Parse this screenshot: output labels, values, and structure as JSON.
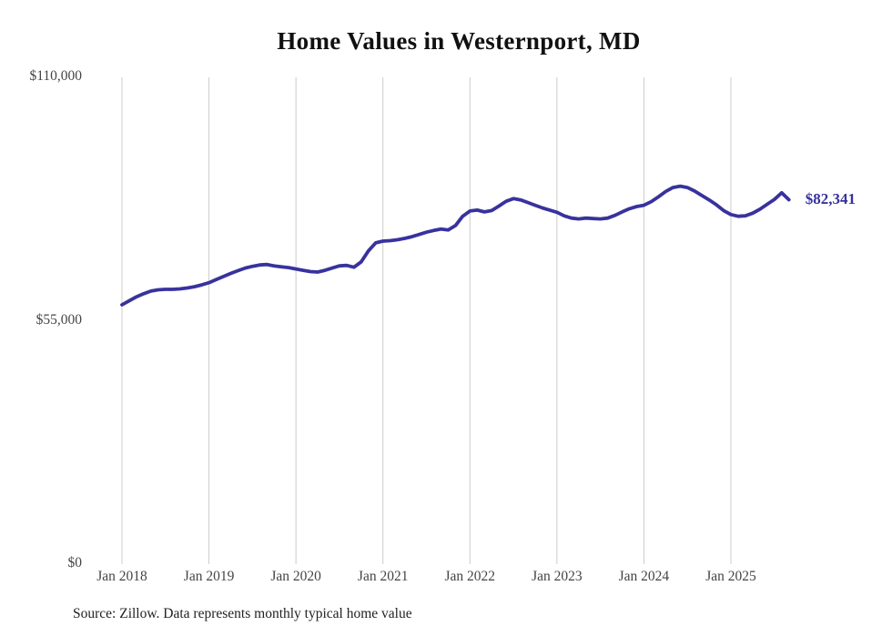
{
  "title": "Home Values in Westernport, MD",
  "source_note": "Source: Zillow. Data represents monthly typical home value",
  "end_label": "$82,341",
  "colors": {
    "line": "#38329e",
    "grid": "#cccccc",
    "axis_text": "#444444",
    "title_text": "#111111",
    "background": "#ffffff"
  },
  "chart_data": {
    "type": "line",
    "title": "Home Values in Westernport, MD",
    "x_start_month": "2018-01",
    "x_interval": "monthly",
    "ylim": [
      0,
      110000
    ],
    "grid": "vertical-only",
    "legend": "none",
    "yticks": [
      {
        "label": "$0",
        "value": 0
      },
      {
        "label": "$55,000",
        "value": 55000
      },
      {
        "label": "$110,000",
        "value": 110000
      }
    ],
    "xticks": [
      {
        "label": "Jan 2018",
        "month_index": 0
      },
      {
        "label": "Jan 2019",
        "month_index": 12
      },
      {
        "label": "Jan 2020",
        "month_index": 24
      },
      {
        "label": "Jan 2021",
        "month_index": 36
      },
      {
        "label": "Jan 2022",
        "month_index": 48
      },
      {
        "label": "Jan 2023",
        "month_index": 60
      },
      {
        "label": "Jan 2024",
        "month_index": 72
      },
      {
        "label": "Jan 2025",
        "month_index": 84
      }
    ],
    "series": [
      {
        "name": "Monthly typical home value",
        "values": [
          58600,
          59500,
          60400,
          61100,
          61700,
          62000,
          62100,
          62100,
          62200,
          62400,
          62700,
          63100,
          63600,
          64300,
          65000,
          65700,
          66300,
          66900,
          67300,
          67600,
          67700,
          67400,
          67200,
          67000,
          66700,
          66400,
          66100,
          66000,
          66400,
          66900,
          67400,
          67500,
          67100,
          68300,
          70800,
          72600,
          73000,
          73100,
          73300,
          73600,
          74000,
          74500,
          75000,
          75400,
          75700,
          75500,
          76500,
          78600,
          79800,
          80000,
          79600,
          79900,
          80900,
          82000,
          82600,
          82300,
          81700,
          81100,
          80500,
          80000,
          79500,
          78700,
          78200,
          78000,
          78200,
          78100,
          78000,
          78200,
          78800,
          79600,
          80300,
          80800,
          81100,
          81900,
          83000,
          84200,
          85100,
          85400,
          85100,
          84300,
          83300,
          82300,
          81200,
          79900,
          79000,
          78600,
          78700,
          79300,
          80200,
          81300,
          82400,
          83900,
          82341
        ]
      }
    ],
    "annotation": {
      "text": "$82,341",
      "attach": "last-point"
    }
  }
}
